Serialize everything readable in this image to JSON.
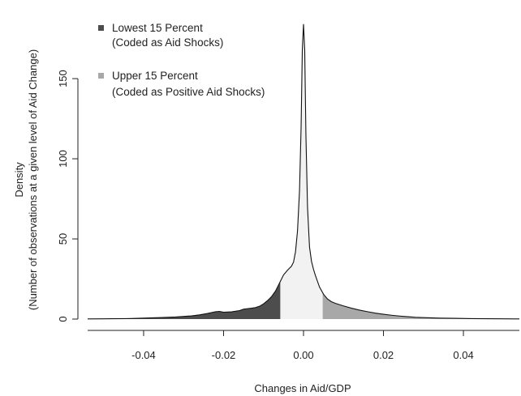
{
  "chart_data": {
    "type": "area",
    "title": "",
    "xlabel": "Changes in Aid/GDP",
    "ylabel_line1": "Density",
    "ylabel_line2": "(Number of observations at a given level of Aid Change)",
    "xlim": [
      -0.054,
      0.054
    ],
    "ylim": [
      0,
      195
    ],
    "x_ticks": [
      -0.04,
      -0.02,
      0.0,
      0.02,
      0.04
    ],
    "x_tick_labels": [
      "-0.04",
      "-0.02",
      "0.00",
      "0.02",
      "0.04"
    ],
    "y_ticks": [
      0,
      50,
      100,
      150
    ],
    "y_tick_labels": [
      "0",
      "50",
      "100",
      "150"
    ],
    "grid": false,
    "legend_position": "top-left",
    "lower_cutoff": -0.0058,
    "upper_cutoff": 0.0048,
    "colors": {
      "lower": "#4d4d4d",
      "middle": "#f2f2f2",
      "upper": "#a8a8a8",
      "line": "#111111"
    },
    "legend": [
      {
        "line1": "Lowest 15 Percent",
        "line2": "(Coded as Aid Shocks)",
        "color": "#4d4d4d"
      },
      {
        "line1": "Upper 15 Percent",
        "line2": "(Coded as Positive Aid Shocks)",
        "color": "#a8a8a8"
      }
    ],
    "density": {
      "x": [
        -0.054,
        -0.048,
        -0.044,
        -0.04,
        -0.036,
        -0.032,
        -0.028,
        -0.026,
        -0.024,
        -0.022,
        -0.021,
        -0.02,
        -0.018,
        -0.016,
        -0.015,
        -0.014,
        -0.013,
        -0.012,
        -0.011,
        -0.01,
        -0.009,
        -0.008,
        -0.007,
        -0.006,
        -0.005,
        -0.004,
        -0.003,
        -0.0025,
        -0.002,
        -0.0015,
        -0.001,
        -0.0006,
        -0.0003,
        0.0,
        0.0003,
        0.0006,
        0.001,
        0.0015,
        0.002,
        0.0025,
        0.003,
        0.004,
        0.005,
        0.006,
        0.007,
        0.008,
        0.01,
        0.012,
        0.014,
        0.016,
        0.018,
        0.02,
        0.022,
        0.024,
        0.026,
        0.028,
        0.03,
        0.034,
        0.038,
        0.042,
        0.046,
        0.05,
        0.054
      ],
      "y": [
        0.1,
        0.2,
        0.3,
        0.6,
        0.9,
        1.3,
        2.0,
        2.6,
        3.5,
        4.6,
        4.8,
        4.3,
        4.5,
        5.3,
        6.2,
        6.5,
        6.8,
        7.2,
        8.0,
        9.5,
        11.5,
        14.0,
        17.5,
        22.5,
        27.5,
        30.5,
        33.0,
        35.5,
        42.0,
        55.0,
        80.0,
        120.0,
        168.0,
        184.0,
        168.0,
        115.0,
        70.0,
        45.0,
        36.0,
        31.0,
        27.0,
        20.0,
        15.5,
        12.5,
        10.8,
        9.8,
        8.2,
        6.8,
        5.6,
        4.6,
        3.7,
        3.0,
        2.4,
        1.9,
        1.5,
        1.1,
        0.9,
        0.6,
        0.45,
        0.3,
        0.2,
        0.15,
        0.1
      ]
    }
  }
}
